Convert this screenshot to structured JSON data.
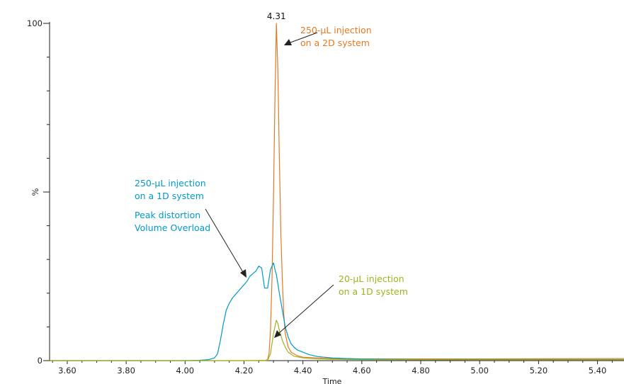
{
  "chart_data": {
    "type": "line",
    "title": "",
    "xlabel": "Time",
    "ylabel": "%",
    "xlim": [
      3.54,
      5.49
    ],
    "ylim": [
      0,
      100
    ],
    "x_ticks": [
      "3.60",
      "3.80",
      "4.00",
      "4.20",
      "4.40",
      "4.60",
      "4.80",
      "5.00",
      "5.20",
      "5.40"
    ],
    "x_tick_values": [
      3.6,
      3.8,
      4.0,
      4.2,
      4.4,
      4.6,
      4.8,
      5.0,
      5.2,
      5.4
    ],
    "y_ticks": [
      "0",
      "%",
      "100"
    ],
    "y_tick_values": [
      0,
      50,
      100
    ],
    "peak_label": {
      "text": "4.31",
      "x": 4.31,
      "y": 100
    },
    "grid": false,
    "series": [
      {
        "key": "2d_250",
        "color": "#e87722",
        "x": [
          3.54,
          4.0,
          4.2,
          4.27,
          4.28,
          4.285,
          4.29,
          4.295,
          4.3,
          4.305,
          4.31,
          4.315,
          4.32,
          4.325,
          4.33,
          4.335,
          4.34,
          4.35,
          4.36,
          4.38,
          4.4,
          4.45,
          4.5,
          4.6,
          5.0,
          5.49
        ],
        "y": [
          0,
          0,
          0,
          0,
          0.3,
          2,
          9,
          24,
          48,
          78,
          100,
          86,
          60,
          38,
          24,
          14,
          8,
          4,
          2.5,
          1.5,
          1,
          0.8,
          0.6,
          0.5,
          0.5,
          0.6
        ]
      },
      {
        "key": "1d_250",
        "color": "#0099c8",
        "x": [
          3.54,
          4.0,
          4.05,
          4.08,
          4.1,
          4.11,
          4.12,
          4.13,
          4.14,
          4.15,
          4.16,
          4.17,
          4.18,
          4.19,
          4.2,
          4.21,
          4.22,
          4.23,
          4.24,
          4.25,
          4.26,
          4.27,
          4.28,
          4.29,
          4.3,
          4.305,
          4.31,
          4.32,
          4.33,
          4.34,
          4.35,
          4.36,
          4.37,
          4.38,
          4.4,
          4.42,
          4.45,
          4.5,
          4.55,
          4.6,
          4.7,
          4.8,
          5.0,
          5.49
        ],
        "y": [
          0,
          0,
          0.1,
          0.3,
          0.8,
          2,
          6,
          11,
          15,
          17,
          18.5,
          19.5,
          20.5,
          21.5,
          22.5,
          23.5,
          25,
          25.8,
          26.5,
          28,
          27.5,
          21.5,
          21.5,
          27,
          29,
          27,
          25.5,
          20,
          15,
          10,
          7,
          5,
          4,
          3.2,
          2.5,
          1.8,
          1.2,
          0.8,
          0.6,
          0.5,
          0.4,
          0.3,
          0.3,
          0.3
        ]
      },
      {
        "key": "1d_20",
        "color": "#9bb51e",
        "x": [
          3.54,
          4.2,
          4.28,
          4.29,
          4.3,
          4.31,
          4.315,
          4.32,
          4.33,
          4.34,
          4.35,
          4.37,
          4.4,
          4.45,
          4.5,
          4.6,
          5.0,
          5.49
        ],
        "y": [
          0,
          0,
          0.1,
          2,
          8,
          12,
          11,
          9,
          6,
          4,
          2.5,
          1.3,
          0.8,
          0.5,
          0.4,
          0.3,
          0.2,
          0.2
        ]
      }
    ],
    "annotations": [
      {
        "key": "2d",
        "color": "#e87722",
        "lines": [
          "250-µL injection",
          "on a 2D system"
        ]
      },
      {
        "key": "1d_250",
        "color": "#0099c8",
        "lines": [
          "250-µL injection",
          "on a 1D system",
          "Peak distortion",
          "Volume Overload"
        ]
      },
      {
        "key": "1d_20",
        "color": "#9bb51e",
        "lines": [
          "20-µL injection",
          "on a 1D system"
        ]
      }
    ]
  }
}
